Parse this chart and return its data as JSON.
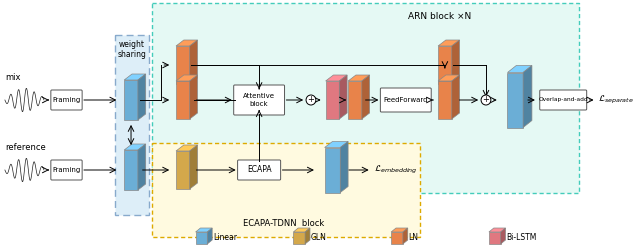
{
  "bg_color": "#ffffff",
  "colors": {
    "linear": "#6baed6",
    "gln": "#d4a84b",
    "ln": "#e8834a",
    "bilstm": "#e07880",
    "blue": "#6baed6",
    "yellow": "#d4a84b",
    "orange": "#e8834a",
    "pink": "#e07880"
  },
  "legend": [
    {
      "label": "Linear",
      "color": "#6baed6"
    },
    {
      "label": "GLN",
      "color": "#d4a84b"
    },
    {
      "label": "LN",
      "color": "#e8834a"
    },
    {
      "label": "Bi-LSTM",
      "color": "#e07880"
    }
  ]
}
